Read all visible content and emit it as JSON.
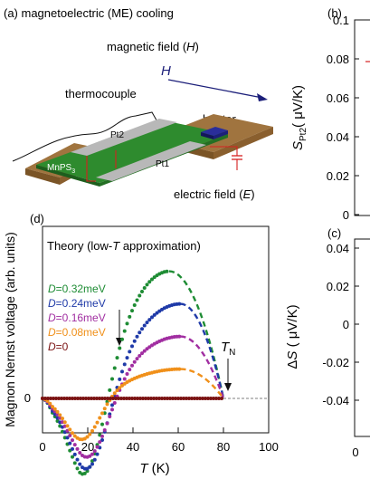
{
  "panel_a": {
    "label": "(a) magnetoelectric (ME) cooling",
    "magnetic_field": "magnetic field (",
    "H": "H",
    "close": ")",
    "H_arrow": "H",
    "thermocouple": "thermocouple",
    "heater": "heater",
    "pt2": "Pt2",
    "pt1": "Pt1",
    "mnps3": "MnPS",
    "mnps3_sub": "3",
    "electric_field": "electric field (",
    "E": "E",
    "colors": {
      "substrate": "#a0743f",
      "substrate_dark": "#7a5426",
      "crystal": "#2e8b2e",
      "pt": "#b8b8b8",
      "wire": "#d62020",
      "heater": "#1c1f7a",
      "arrow": "#1c1f7a"
    }
  },
  "panel_b": {
    "label": "(b)",
    "ylabel_main": "S",
    "ylabel_sub": "Pt2",
    "ylabel_unit": "( μV/K)",
    "yticks": [
      "0.1",
      "0.08",
      "0.06",
      "0.04",
      "0.02",
      "0"
    ]
  },
  "panel_c": {
    "label": "(c)",
    "ylabel": "ΔS ( μV/K)",
    "ylabel_delta": "Δ",
    "ylabel_S": "S",
    "ylabel_unit": " ( μV/K)",
    "yticks": [
      "0.04",
      "0.02",
      "0",
      "-0.02",
      "-0.04"
    ],
    "xtick_first": "0"
  },
  "panel_d": {
    "label": "(d)",
    "legend_title": "Theory (low-",
    "legend_title_T": "T",
    "legend_title_end": " approximation)",
    "legend_D": "D",
    "tn_main": "T",
    "tn_sub": "N",
    "ylabel": "Magnon Nernst voltage (arb. units)",
    "xlabel_T": "T",
    "xlabel_unit": " (K)",
    "zero_label": "0"
  },
  "chart_data": {
    "type": "line",
    "xlabel": "T (K)",
    "ylabel": "Magnon Nernst voltage (arb. units)",
    "xlim": [
      0,
      100
    ],
    "ylim": [
      -0.1,
      0.6
    ],
    "xticks": [
      "0",
      "20",
      "40",
      "60",
      "80",
      "100"
    ],
    "TN": 80,
    "series": [
      {
        "name": "=0.32meV",
        "color": "#1e8c34",
        "A": 0.25,
        "Tdip": 20,
        "peak": 0.39,
        "peakT": 56
      },
      {
        "name": "=0.24meV",
        "color": "#1f3aa8",
        "A": 0.23,
        "Tdip": 21,
        "peak": 0.29,
        "peakT": 61
      },
      {
        "name": "=0.16meV",
        "color": "#a12ea1",
        "A": 0.19,
        "Tdip": 21,
        "peak": 0.19,
        "peakT": 61
      },
      {
        "name": "=0.08meV",
        "color": "#f0901a",
        "A": 0.13,
        "Tdip": 18,
        "peak": 0.09,
        "peakT": 61
      },
      {
        "name": "=0",
        "color": "#7a1212",
        "A": 0,
        "Tdip": 20,
        "peak": 0,
        "peakT": 60
      }
    ]
  }
}
